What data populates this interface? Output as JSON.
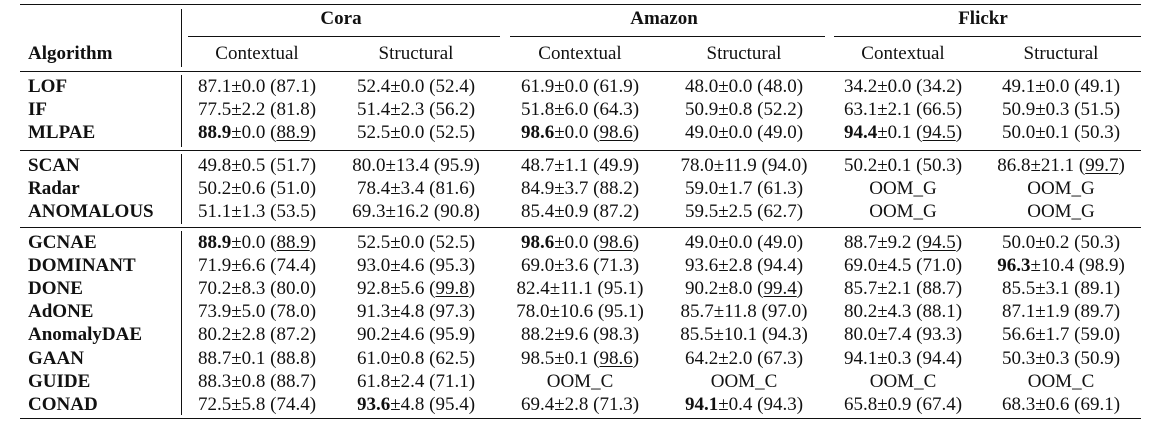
{
  "header": {
    "datasets": [
      "Cora",
      "Amazon",
      "Flickr"
    ],
    "algorithm_label": "Algorithm",
    "subcolumns": [
      "Contextual",
      "Structural",
      "Contextual",
      "Structural",
      "Contextual",
      "Structural"
    ]
  },
  "groups": [
    {
      "rows": [
        {
          "algorithm": "LOF",
          "cells": [
            "87.1±0.0 (87.1)",
            "52.4±0.0 (52.4)",
            "61.9±0.0 (61.9)",
            "48.0±0.0 (48.0)",
            "34.2±0.0 (34.2)",
            "49.1±0.0 (49.1)"
          ]
        },
        {
          "algorithm": "IF",
          "cells": [
            "77.5±2.2 (81.8)",
            "51.4±2.3 (56.2)",
            "51.8±6.0 (64.3)",
            "50.9±0.8 (52.2)",
            "63.1±2.1 (66.5)",
            "50.9±0.3 (51.5)"
          ]
        },
        {
          "algorithm": "MLPAE",
          "cells": [
            "88.9±0.0 (88.9)",
            "52.5±0.0 (52.5)",
            "98.6±0.0 (98.6)",
            "49.0±0.0 (49.0)",
            "94.4±0.1 (94.5)",
            "50.0±0.1 (50.3)"
          ]
        }
      ]
    },
    {
      "rows": [
        {
          "algorithm": "SCAN",
          "cells": [
            "49.8±0.5 (51.7)",
            "80.0±13.4 (95.9)",
            "48.7±1.1 (49.9)",
            "78.0±11.9 (94.0)",
            "50.2±0.1 (50.3)",
            "86.8±21.1 (99.7)"
          ]
        },
        {
          "algorithm": "Radar",
          "cells": [
            "50.2±0.6 (51.0)",
            "78.4±3.4 (81.6)",
            "84.9±3.7 (88.2)",
            "59.0±1.7 (61.3)",
            "OOM_G",
            "OOM_G"
          ]
        },
        {
          "algorithm": "ANOMALOUS",
          "cells": [
            "51.1±1.3 (53.5)",
            "69.3±16.2 (90.8)",
            "85.4±0.9 (87.2)",
            "59.5±2.5 (62.7)",
            "OOM_G",
            "OOM_G"
          ]
        }
      ]
    },
    {
      "rows": [
        {
          "algorithm": "GCNAE",
          "cells": [
            "88.9±0.0 (88.9)",
            "52.5±0.0 (52.5)",
            "98.6±0.0 (98.6)",
            "49.0±0.0 (49.0)",
            "88.7±9.2 (94.5)",
            "50.0±0.2 (50.3)"
          ]
        },
        {
          "algorithm": "DOMINANT",
          "cells": [
            "71.9±6.6 (74.4)",
            "93.0±4.6 (95.3)",
            "69.0±3.6 (71.3)",
            "93.6±2.8 (94.4)",
            "69.0±4.5 (71.0)",
            "96.3±10.4 (98.9)"
          ]
        },
        {
          "algorithm": "DONE",
          "cells": [
            "70.2±8.3 (80.0)",
            "92.8±5.6 (99.8)",
            "82.4±11.1 (95.1)",
            "90.2±8.0 (99.4)",
            "85.7±2.1 (88.7)",
            "85.5±3.1 (89.1)"
          ]
        },
        {
          "algorithm": "AdONE",
          "cells": [
            "73.9±5.0 (78.0)",
            "91.3±4.8 (97.3)",
            "78.0±10.6 (95.1)",
            "85.7±11.8 (97.0)",
            "80.2±4.3 (88.1)",
            "87.1±1.9 (89.7)"
          ]
        },
        {
          "algorithm": "AnomalyDAE",
          "cells": [
            "80.2±2.8 (87.2)",
            "90.2±4.6 (95.9)",
            "88.2±9.6 (98.3)",
            "85.5±10.1 (94.3)",
            "80.0±7.4 (93.3)",
            "56.6±1.7 (59.0)"
          ]
        },
        {
          "algorithm": "GAAN",
          "cells": [
            "88.7±0.1 (88.8)",
            "61.0±0.8 (62.5)",
            "98.5±0.1 (98.6)",
            "64.2±2.0 (67.3)",
            "94.1±0.3 (94.4)",
            "50.3±0.3 (50.9)"
          ]
        },
        {
          "algorithm": "GUIDE",
          "cells": [
            "88.3±0.8 (88.7)",
            "61.8±2.4 (71.1)",
            "OOM_C",
            "OOM_C",
            "OOM_C",
            "OOM_C"
          ]
        },
        {
          "algorithm": "CONAD",
          "cells": [
            "72.5±5.8 (74.4)",
            "93.6±4.8 (95.4)",
            "69.4±2.8 (71.3)",
            "94.1±0.4 (94.3)",
            "65.8±0.9 (67.4)",
            "68.3±0.6 (69.1)"
          ]
        }
      ]
    }
  ],
  "bold_cells": [
    "2.0",
    "2.2",
    "2.4",
    "6.0",
    "6.2",
    "7.5",
    "13.1",
    "13.3"
  ],
  "underline_cells": [
    "2.0",
    "2.2",
    "2.4",
    "3.5",
    "6.0",
    "6.2",
    "6.4",
    "8.1",
    "8.3",
    "11.2"
  ]
}
